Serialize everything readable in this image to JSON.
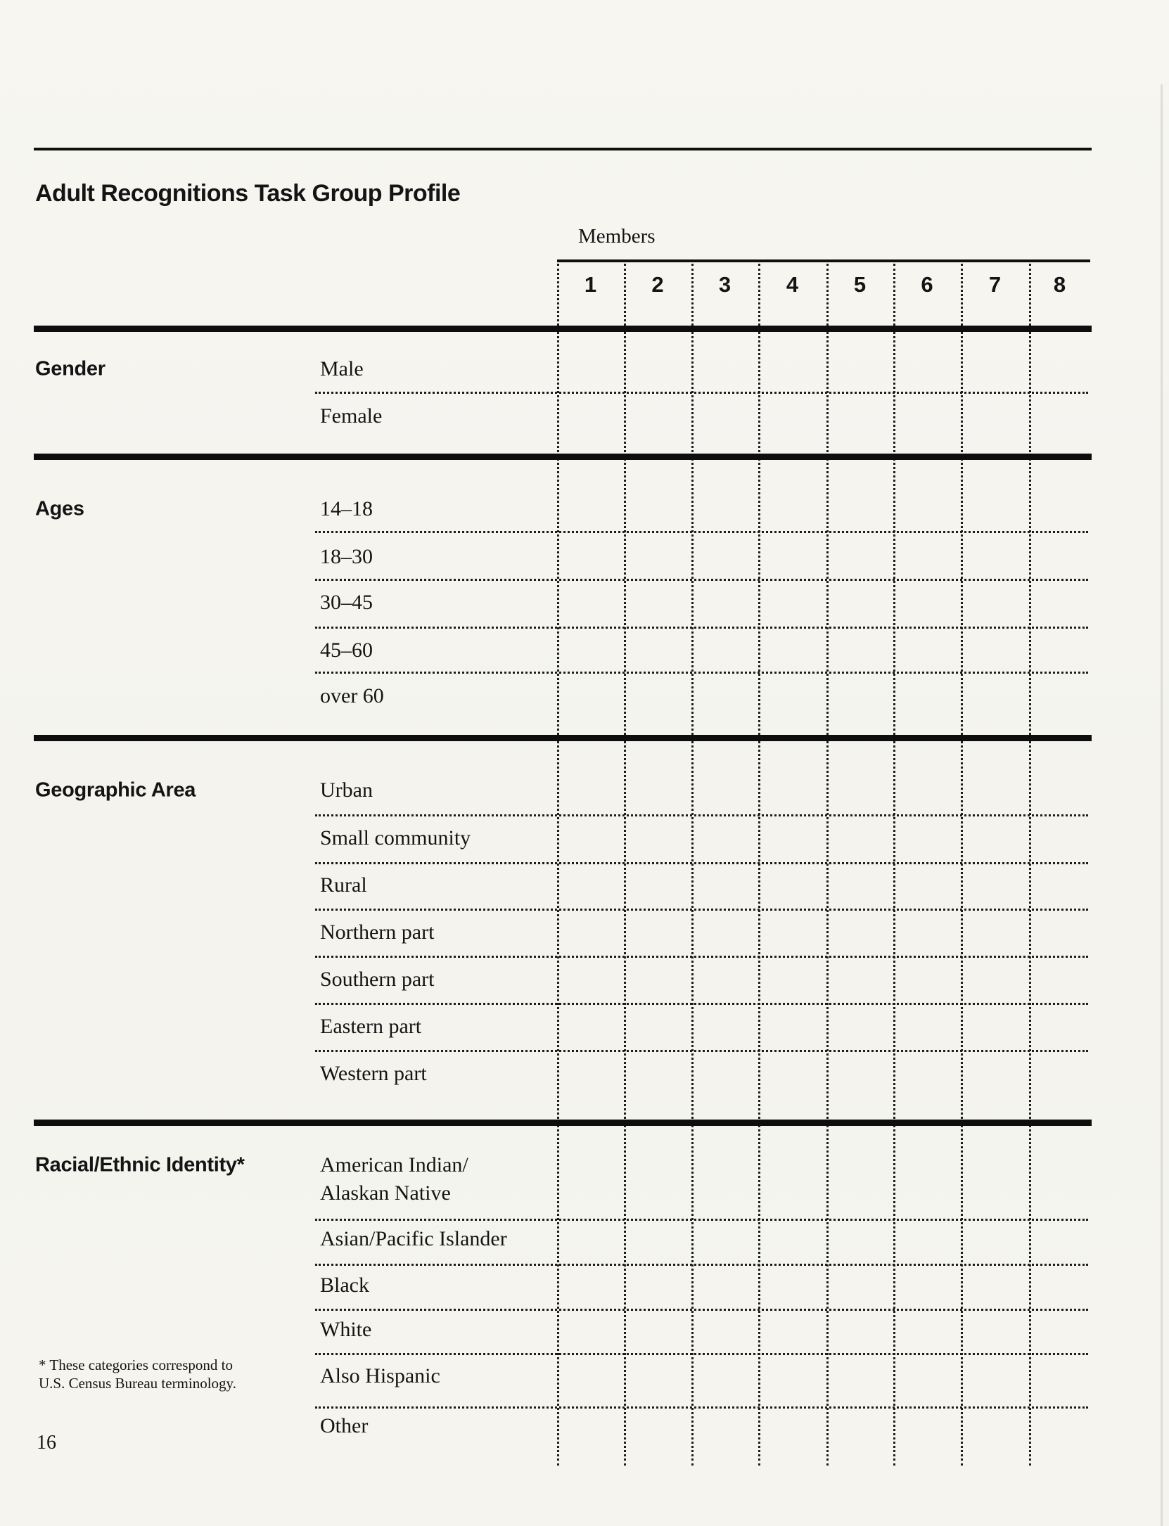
{
  "page": {
    "title": "Adult Recognitions Task Group Profile",
    "page_number": "16",
    "footnote": "* These categories correspond to\nU.S. Census Bureau terminology."
  },
  "table": {
    "members_label": "Members",
    "member_columns": [
      "1",
      "2",
      "3",
      "4",
      "5",
      "6",
      "7",
      "8"
    ],
    "sections": [
      {
        "label": "Gender",
        "rows": [
          "Male",
          "Female"
        ]
      },
      {
        "label": "Ages",
        "rows": [
          "14–18",
          "18–30",
          "30–45",
          "45–60",
          "over 60"
        ]
      },
      {
        "label": "Geographic Area",
        "rows": [
          "Urban",
          "Small community",
          "Rural",
          "Northern part",
          "Southern part",
          "Eastern part",
          "Western part"
        ]
      },
      {
        "label": "Racial/Ethnic Identity*",
        "rows": [
          "American Indian/\nAlaskan Native",
          "Asian/Pacific Islander",
          "Black",
          "White",
          "Also Hispanic",
          "Other"
        ]
      }
    ]
  }
}
